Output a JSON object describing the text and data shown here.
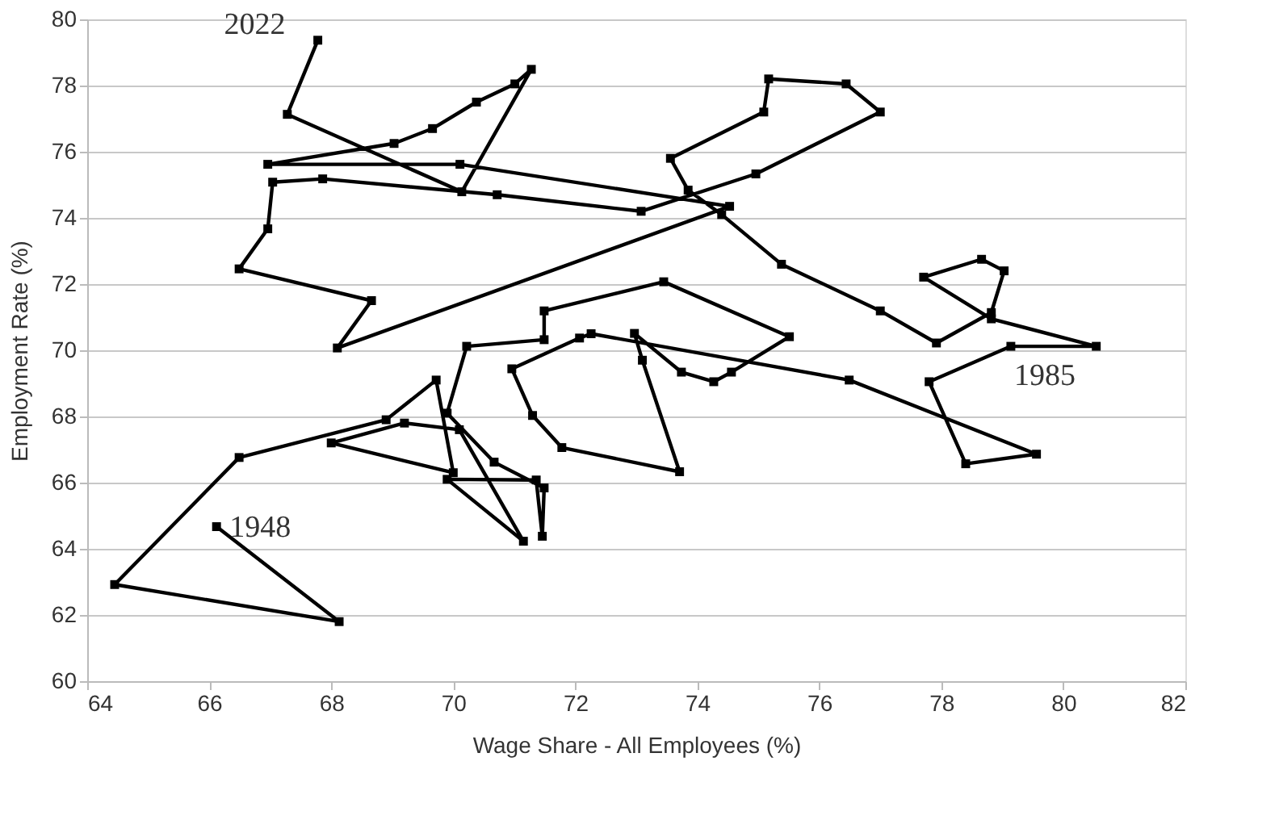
{
  "chart_data": {
    "type": "line",
    "xlabel": "Wage Share - All Employees (%)",
    "ylabel": "Employment Rate (%)",
    "xlim": [
      64,
      82
    ],
    "xticks": [
      64,
      66,
      68,
      70,
      72,
      74,
      76,
      78,
      80,
      82
    ],
    "ylim": [
      60,
      80
    ],
    "yticks": [
      60,
      62,
      64,
      66,
      68,
      70,
      72,
      74,
      76,
      78,
      80
    ],
    "grid": "y",
    "marker": "square",
    "line_style": "solid",
    "series": [
      {
        "color": "#000000",
        "x": [
          66.12,
          68.13,
          64.45,
          66.49,
          68.9,
          69.72,
          70.0,
          68.0,
          69.2,
          70.1,
          71.15,
          69.9,
          71.36,
          71.46,
          71.49,
          70.67,
          69.9,
          70.22,
          71.49,
          71.49,
          73.45,
          75.51,
          74.56,
          74.27,
          73.74,
          72.97,
          73.1,
          73.71,
          71.78,
          71.3,
          70.96,
          72.07,
          72.26,
          76.49,
          79.56,
          78.4,
          77.8,
          79.14,
          80.54,
          78.82,
          77.71,
          78.66,
          79.03,
          78.82,
          77.92,
          77.0,
          75.38,
          74.4,
          73.85,
          73.56,
          75.09,
          75.17,
          76.44,
          77.0,
          74.96,
          73.08,
          70.72,
          67.86,
          67.04,
          66.96,
          66.49,
          68.66,
          68.1,
          74.53,
          70.11,
          66.96,
          69.03,
          69.66,
          70.38,
          71.01,
          71.28,
          70.14,
          67.28,
          67.78
        ],
        "values": [
          64.67,
          61.8,
          62.92,
          66.76,
          67.9,
          69.1,
          66.3,
          67.2,
          67.8,
          67.6,
          64.23,
          66.1,
          66.08,
          64.38,
          65.84,
          66.62,
          68.1,
          70.12,
          70.32,
          71.19,
          72.07,
          70.41,
          69.34,
          69.05,
          69.34,
          70.51,
          69.7,
          66.33,
          67.06,
          68.03,
          69.44,
          70.37,
          70.5,
          69.1,
          66.86,
          66.57,
          69.05,
          70.12,
          70.12,
          70.95,
          72.21,
          72.75,
          72.4,
          71.14,
          70.22,
          71.19,
          72.6,
          74.1,
          74.84,
          75.8,
          77.2,
          78.2,
          78.05,
          77.2,
          75.33,
          74.2,
          74.7,
          75.18,
          75.08,
          73.67,
          72.46,
          71.5,
          70.07,
          74.35,
          75.62,
          75.62,
          76.25,
          76.7,
          77.5,
          78.05,
          78.49,
          74.79,
          77.13,
          79.37
        ]
      }
    ],
    "annotations": [
      {
        "text": "1948",
        "x": 66.12,
        "y": 64.67
      },
      {
        "text": "1985",
        "x": 79.14,
        "y": 70.12
      },
      {
        "text": "2022",
        "x": 67.78,
        "y": 79.37
      }
    ]
  }
}
